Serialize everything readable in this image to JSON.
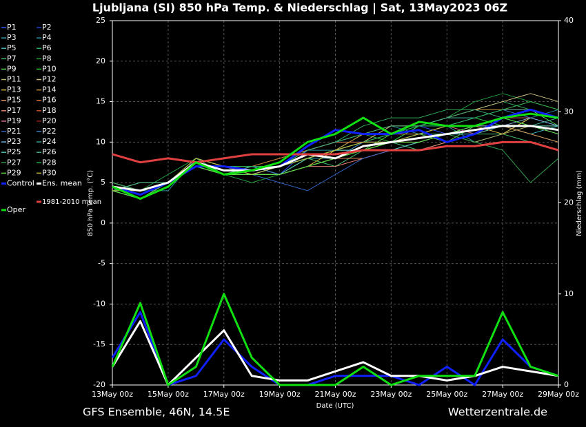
{
  "chart_data": {
    "type": "line",
    "title": "Ljubljana  (SI)  850 hPa Temp. & Niederschlag | Sat, 13May2023 06Z",
    "subtitle": "GFS Ensemble, 46N, 14.5E",
    "credit": "Wetterzentrale.de",
    "xlabel": "Date (UTC)",
    "ylabel": "850 hPa Temp. (°C)",
    "y2label": "Niederschlag (mm)",
    "x": [
      0,
      1,
      2,
      3,
      4,
      5,
      6,
      7,
      8,
      9,
      10,
      11,
      12,
      13,
      14,
      15,
      16
    ],
    "xlim": [
      0,
      16
    ],
    "xticks": [
      {
        "value": 0,
        "label": "13May 00z"
      },
      {
        "value": 2,
        "label": "15May 00z"
      },
      {
        "value": 4,
        "label": "17May 00z"
      },
      {
        "value": 6,
        "label": "19May 00z"
      },
      {
        "value": 8,
        "label": "21May 00z"
      },
      {
        "value": 10,
        "label": "23May 00z"
      },
      {
        "value": 12,
        "label": "25May 00z"
      },
      {
        "value": 14,
        "label": "27May 00z"
      },
      {
        "value": 16,
        "label": "29May 00z"
      }
    ],
    "ylim": [
      -20,
      25
    ],
    "yticks": [
      -20,
      -15,
      -10,
      -5,
      0,
      5,
      10,
      15,
      20,
      25
    ],
    "y2lim": [
      0,
      40
    ],
    "y2ticks": [
      0,
      10,
      20,
      30,
      40
    ],
    "grid": true,
    "series": [
      {
        "name": "P1",
        "color": "#3050ff",
        "values": [
          4,
          4,
          5,
          7,
          7,
          7,
          6,
          9,
          10,
          10,
          11,
          12,
          11,
          12,
          13,
          13,
          12
        ]
      },
      {
        "name": "P2",
        "color": "#2040d0",
        "values": [
          4,
          3,
          5,
          8,
          6,
          7,
          7,
          8,
          9,
          9,
          9,
          10,
          11,
          11,
          12,
          12,
          13
        ]
      },
      {
        "name": "P3",
        "color": "#30a0b0",
        "values": [
          5,
          4,
          5,
          7,
          6,
          6,
          6,
          8,
          8,
          10,
          10,
          11,
          11,
          12,
          13,
          12,
          11
        ]
      },
      {
        "name": "P4",
        "color": "#2a8ca0",
        "values": [
          4,
          4,
          4,
          8,
          7,
          6,
          7,
          9,
          9,
          11,
          12,
          11,
          12,
          10,
          11,
          13,
          14
        ]
      },
      {
        "name": "P5",
        "color": "#40c0c0",
        "values": [
          4,
          5,
          5,
          7,
          6,
          7,
          6,
          7,
          8,
          9,
          10,
          12,
          12,
          13,
          12,
          11,
          12
        ]
      },
      {
        "name": "P6",
        "color": "#30b060",
        "values": [
          5,
          4,
          5,
          8,
          7,
          7,
          8,
          9,
          10,
          12,
          13,
          13,
          14,
          14,
          15,
          14,
          13
        ]
      },
      {
        "name": "P7",
        "color": "#40c070",
        "values": [
          4,
          3,
          5,
          7,
          6,
          6,
          7,
          8,
          7,
          9,
          10,
          9,
          10,
          11,
          11,
          10,
          9
        ]
      },
      {
        "name": "P8",
        "color": "#20a040",
        "values": [
          5,
          4,
          6,
          8,
          6,
          5,
          6,
          7,
          8,
          10,
          11,
          12,
          13,
          15,
          16,
          15,
          14
        ]
      },
      {
        "name": "P9",
        "color": "#50d050",
        "values": [
          4,
          4,
          5,
          7,
          7,
          6,
          6,
          8,
          9,
          9,
          11,
          11,
          10,
          12,
          13,
          14,
          12
        ]
      },
      {
        "name": "P10",
        "color": "#30c030",
        "values": [
          5,
          4,
          5,
          8,
          6,
          7,
          7,
          9,
          10,
          11,
          10,
          12,
          13,
          13,
          12,
          11,
          10
        ]
      },
      {
        "name": "P11",
        "color": "#b0b060",
        "values": [
          4,
          4,
          5,
          7,
          6,
          6,
          6,
          7,
          8,
          9,
          9,
          10,
          11,
          10,
          11,
          12,
          12
        ]
      },
      {
        "name": "P12",
        "color": "#d0c080",
        "values": [
          4,
          5,
          5,
          8,
          7,
          7,
          7,
          8,
          9,
          10,
          12,
          12,
          13,
          14,
          15,
          16,
          15
        ]
      },
      {
        "name": "P13",
        "color": "#e0c040",
        "values": [
          5,
          4,
          5,
          7,
          6,
          6,
          6,
          7,
          9,
          10,
          10,
          11,
          12,
          12,
          11,
          13,
          12
        ]
      },
      {
        "name": "P14",
        "color": "#d0a040",
        "values": [
          4,
          4,
          5,
          8,
          7,
          6,
          7,
          8,
          9,
          11,
          12,
          12,
          13,
          14,
          14,
          15,
          14
        ]
      },
      {
        "name": "P15",
        "color": "#e09060",
        "values": [
          4,
          3,
          5,
          7,
          6,
          6,
          6,
          7,
          8,
          8,
          9,
          10,
          11,
          12,
          12,
          11,
          10
        ]
      },
      {
        "name": "P16",
        "color": "#d07030",
        "values": [
          5,
          4,
          5,
          8,
          7,
          7,
          8,
          9,
          10,
          10,
          11,
          11,
          12,
          13,
          14,
          14,
          13
        ]
      },
      {
        "name": "P17",
        "color": "#e08070",
        "values": [
          4,
          4,
          5,
          7,
          6,
          6,
          6,
          7,
          7,
          8,
          9,
          9,
          10,
          11,
          12,
          12,
          11
        ]
      },
      {
        "name": "P18",
        "color": "#c05030",
        "values": [
          4,
          4,
          5,
          8,
          6,
          7,
          7,
          8,
          9,
          9,
          10,
          10,
          11,
          12,
          13,
          13,
          12
        ]
      },
      {
        "name": "P19",
        "color": "#e07090",
        "values": [
          5,
          4,
          5,
          7,
          6,
          6,
          7,
          8,
          9,
          10,
          10,
          11,
          12,
          11,
          12,
          12,
          11
        ]
      },
      {
        "name": "P20",
        "color": "#902020",
        "values": [
          4,
          4,
          5,
          8,
          7,
          6,
          6,
          7,
          8,
          9,
          10,
          11,
          11,
          12,
          12,
          13,
          12
        ]
      },
      {
        "name": "P21",
        "color": "#3060c0",
        "values": [
          4,
          4,
          5,
          7,
          7,
          6,
          5,
          4,
          6,
          8,
          9,
          10,
          11,
          12,
          13,
          12,
          11
        ]
      },
      {
        "name": "P22",
        "color": "#4080c0",
        "values": [
          4,
          3,
          5,
          8,
          6,
          7,
          6,
          7,
          8,
          10,
          10,
          11,
          12,
          13,
          14,
          13,
          12
        ]
      },
      {
        "name": "P23",
        "color": "#70b0e0",
        "values": [
          5,
          4,
          5,
          7,
          6,
          6,
          7,
          8,
          9,
          9,
          10,
          11,
          11,
          12,
          12,
          13,
          12
        ]
      },
      {
        "name": "P24",
        "color": "#40a0a0",
        "values": [
          4,
          4,
          5,
          8,
          7,
          7,
          7,
          8,
          9,
          10,
          11,
          12,
          13,
          13,
          14,
          14,
          13
        ]
      },
      {
        "name": "P25",
        "color": "#50c0b0",
        "values": [
          4,
          4,
          5,
          7,
          6,
          6,
          6,
          8,
          9,
          9,
          9,
          10,
          11,
          11,
          12,
          12,
          12
        ]
      },
      {
        "name": "P26",
        "color": "#40b080",
        "values": [
          4,
          5,
          5,
          7,
          6,
          7,
          7,
          9,
          10,
          11,
          12,
          12,
          13,
          14,
          13,
          12,
          13
        ]
      },
      {
        "name": "P27",
        "color": "#30a050",
        "values": [
          5,
          4,
          5,
          8,
          6,
          6,
          6,
          7,
          8,
          9,
          10,
          11,
          11,
          10,
          9,
          5,
          8
        ]
      },
      {
        "name": "P28",
        "color": "#20b050",
        "values": [
          4,
          4,
          5,
          7,
          7,
          7,
          7,
          8,
          9,
          10,
          11,
          12,
          12,
          13,
          14,
          15,
          14
        ]
      },
      {
        "name": "P29",
        "color": "#60e040",
        "values": [
          4,
          3,
          5,
          7,
          6,
          6,
          6,
          7,
          8,
          9,
          10,
          10,
          11,
          12,
          13,
          12,
          11
        ]
      },
      {
        "name": "P30",
        "color": "#c0c040",
        "values": [
          4,
          4,
          5,
          8,
          7,
          6,
          7,
          8,
          9,
          10,
          10,
          11,
          12,
          12,
          13,
          14,
          13
        ]
      },
      {
        "name": "Control",
        "color": "#1020ff",
        "values": [
          4.5,
          3.5,
          5,
          7,
          7,
          6.5,
          7,
          9.5,
          11.5,
          11,
          11,
          11.5,
          10,
          11,
          13,
          14,
          13
        ]
      },
      {
        "name": "Ens. mean",
        "color": "#ffffff",
        "values": [
          4.5,
          4,
          5,
          7.5,
          6.5,
          6.5,
          7,
          8.5,
          8,
          9.5,
          10,
          10.5,
          11,
          11.5,
          12,
          12,
          11.5
        ]
      },
      {
        "name": "1981-2010 mean",
        "color": "#e04040",
        "values": [
          8.5,
          7.5,
          8,
          7.5,
          8,
          8.5,
          8.5,
          8.5,
          8.5,
          9,
          9,
          9,
          9.5,
          9.5,
          10,
          10,
          9
        ]
      },
      {
        "name": "Oper",
        "color": "#10e010",
        "values": [
          4.5,
          3,
          4.5,
          7.5,
          6,
          6.5,
          7.5,
          10,
          11,
          13,
          11,
          12.5,
          12,
          12,
          13,
          13.5,
          13
        ]
      },
      {
        "color": "#1020ff",
        "axis": "y2",
        "values": [
          3,
          8,
          0,
          1,
          5,
          2,
          0,
          0,
          1,
          1,
          1,
          0,
          2,
          0,
          5,
          2,
          1
        ]
      },
      {
        "color": "#ffffff",
        "axis": "y2",
        "values": [
          2,
          7,
          0,
          3,
          6,
          1,
          0.5,
          0.5,
          1.5,
          2.5,
          1,
          1,
          0.5,
          1,
          2,
          1.5,
          1
        ]
      },
      {
        "color": "#10e010",
        "axis": "y2",
        "values": [
          2,
          9,
          0,
          2,
          10,
          3,
          0,
          0,
          0,
          2,
          0,
          1,
          1,
          1,
          8,
          2,
          1
        ]
      }
    ]
  }
}
